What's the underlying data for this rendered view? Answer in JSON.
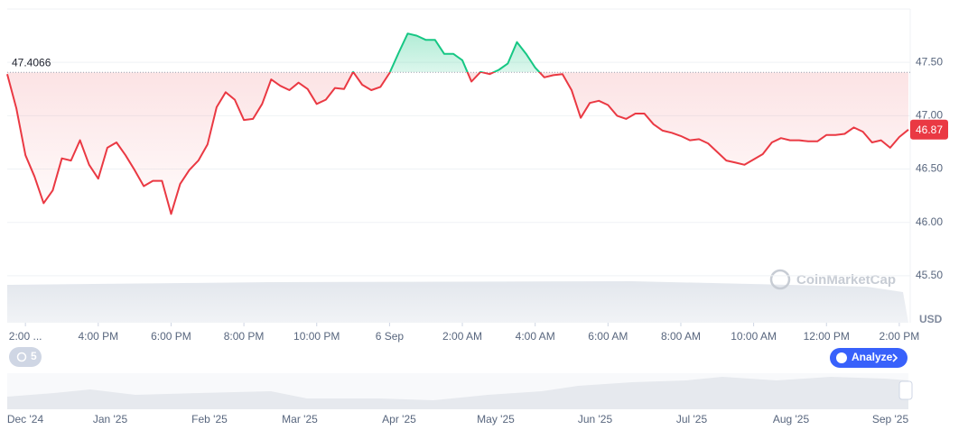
{
  "chart_data": {
    "type": "line",
    "currency": "USD",
    "reference_price": 47.4066,
    "current_price": 46.87,
    "color_up": "#16c784",
    "color_down": "#ea3943",
    "grid": true,
    "xlim": [
      0,
      24.8
    ],
    "ylim": [
      45.06,
      48.0
    ],
    "yticks": [
      {
        "value": 45.5,
        "label": "45.50"
      },
      {
        "value": 46,
        "label": "46.00"
      },
      {
        "value": 46.5,
        "label": "46.50"
      },
      {
        "value": 47,
        "label": "47.00"
      },
      {
        "value": 47.5,
        "label": "47.50"
      }
    ],
    "xticks": [
      {
        "value": 0.5,
        "label": "2:00 ..."
      },
      {
        "value": 2.5,
        "label": "4:00 PM"
      },
      {
        "value": 4.5,
        "label": "6:00 PM"
      },
      {
        "value": 6.5,
        "label": "8:00 PM"
      },
      {
        "value": 8.5,
        "label": "10:00 PM"
      },
      {
        "value": 10.5,
        "label": "6 Sep"
      },
      {
        "value": 12.5,
        "label": "2:00 AM"
      },
      {
        "value": 14.5,
        "label": "4:00 AM"
      },
      {
        "value": 16.5,
        "label": "6:00 AM"
      },
      {
        "value": 18.5,
        "label": "8:00 AM"
      },
      {
        "value": 20.5,
        "label": "10:00 AM"
      },
      {
        "value": 22.5,
        "label": "12:00 PM"
      },
      {
        "value": 24.5,
        "label": "2:00 PM"
      }
    ],
    "x": [
      0,
      0.25,
      0.5,
      0.75,
      1,
      1.25,
      1.5,
      1.75,
      2,
      2.25,
      2.5,
      2.75,
      3,
      3.25,
      3.5,
      3.75,
      4,
      4.25,
      4.5,
      4.75,
      5,
      5.25,
      5.5,
      5.75,
      6,
      6.25,
      6.5,
      6.75,
      7,
      7.25,
      7.5,
      7.75,
      8,
      8.25,
      8.5,
      8.75,
      9,
      9.25,
      9.5,
      9.75,
      10,
      10.25,
      10.5,
      10.75,
      11,
      11.25,
      11.5,
      11.75,
      12,
      12.25,
      12.5,
      12.75,
      13,
      13.25,
      13.5,
      13.75,
      14,
      14.25,
      14.5,
      14.75,
      15,
      15.25,
      15.5,
      15.75,
      16,
      16.25,
      16.5,
      16.75,
      17,
      17.25,
      17.5,
      17.75,
      18,
      18.25,
      18.5,
      18.75,
      19,
      19.25,
      19.5,
      19.75,
      20,
      20.25,
      20.5,
      20.75,
      21,
      21.25,
      21.5,
      21.75,
      22,
      22.25,
      22.5,
      22.75,
      23,
      23.25,
      23.5,
      23.75,
      24,
      24.25,
      24.5,
      24.75
    ],
    "values": [
      47.39,
      47.07,
      46.63,
      46.43,
      46.18,
      46.3,
      46.6,
      46.58,
      46.77,
      46.54,
      46.41,
      46.7,
      46.75,
      46.63,
      46.49,
      46.34,
      46.39,
      46.39,
      46.08,
      46.36,
      46.49,
      46.58,
      46.73,
      47.08,
      47.22,
      47.15,
      46.96,
      46.97,
      47.11,
      47.34,
      47.28,
      47.24,
      47.31,
      47.25,
      47.11,
      47.15,
      47.26,
      47.25,
      47.41,
      47.29,
      47.24,
      47.27,
      47.4,
      47.59,
      47.77,
      47.75,
      47.71,
      47.71,
      47.58,
      47.58,
      47.52,
      47.32,
      47.41,
      47.39,
      47.43,
      47.49,
      47.69,
      47.58,
      47.45,
      47.36,
      47.38,
      47.39,
      47.24,
      46.98,
      47.12,
      47.14,
      47.1,
      47.0,
      46.97,
      47.02,
      47.02,
      46.92,
      46.86,
      46.84,
      46.81,
      46.77,
      46.78,
      46.74,
      46.66,
      46.58,
      46.56,
      46.54,
      46.59,
      46.64,
      46.75,
      46.79,
      46.77,
      46.77,
      46.76,
      46.76,
      46.82,
      46.82,
      46.83,
      46.89,
      46.85,
      46.75,
      46.77,
      46.7,
      46.8,
      46.87
    ],
    "navigator_labels": [
      "Dec '24",
      "Jan '25",
      "Feb '25",
      "Mar '25",
      "Apr '25",
      "May '25",
      "Jun '25",
      "Jul '25",
      "Aug '25",
      "Sep '25"
    ]
  },
  "ui": {
    "watermark": "CoinMarketCap",
    "history_button": "5",
    "analyze_button": "Analyze"
  }
}
